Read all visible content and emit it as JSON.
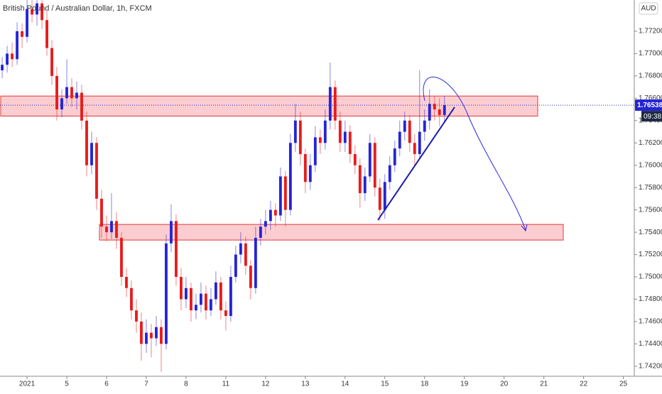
{
  "chart_data": {
    "type": "candlestick",
    "title": "British Pound / Australian Dollar, 1h, FXCM",
    "currency": "AUD",
    "countdown": "09:38",
    "up_color": "#2424d6",
    "down_color": "#e81b1b",
    "open": [
      1.7685,
      1.769,
      1.77,
      1.7695,
      1.772,
      1.7715,
      1.774,
      1.7735,
      1.7745,
      1.773,
      1.7705,
      1.768,
      1.765,
      1.766,
      1.767,
      1.766,
      1.7665,
      1.764,
      1.76,
      1.762,
      1.757,
      1.7545,
      1.754,
      1.755,
      1.7535,
      1.75,
      1.749,
      1.747,
      1.746,
      1.744,
      1.745,
      1.7445,
      1.7455,
      1.744,
      1.753,
      1.755,
      1.75,
      1.748,
      1.749,
      1.747,
      1.7475,
      1.7485,
      1.747,
      1.748,
      1.7495,
      1.747,
      1.7465,
      1.75,
      1.752,
      1.753,
      1.751,
      1.749,
      1.7535,
      1.7545,
      1.755,
      1.756,
      1.7555,
      1.759,
      1.756,
      1.762,
      1.764,
      1.761,
      1.7585,
      1.76,
      1.7625,
      1.762,
      1.764,
      1.767,
      1.764,
      1.762,
      1.763,
      1.761,
      1.76,
      1.7575,
      1.759,
      1.762,
      1.758,
      1.756,
      1.7585,
      1.76,
      1.7615,
      1.763,
      1.764,
      1.762,
      1.761,
      1.763,
      1.764,
      1.7655,
      1.765,
      1.7645
    ],
    "high": [
      1.7697,
      1.7707,
      1.771,
      1.7728,
      1.7727,
      1.7748,
      1.7748,
      1.7748,
      1.7748,
      1.7738,
      1.7712,
      1.7688,
      1.7668,
      1.7695,
      1.7678,
      1.7675,
      1.7672,
      1.7648,
      1.763,
      1.7625,
      1.7578,
      1.7555,
      1.7575,
      1.7558,
      1.754,
      1.7508,
      1.7497,
      1.748,
      1.7468,
      1.7462,
      1.7458,
      1.7465,
      1.7462,
      1.7538,
      1.7565,
      1.7556,
      1.7508,
      1.75,
      1.7495,
      1.7485,
      1.7495,
      1.7492,
      1.749,
      1.7505,
      1.75,
      1.7478,
      1.751,
      1.7528,
      1.754,
      1.7536,
      1.7515,
      1.7545,
      1.7552,
      1.756,
      1.7568,
      1.7566,
      1.7598,
      1.7595,
      1.7628,
      1.7655,
      1.7648,
      1.7615,
      1.761,
      1.7635,
      1.7632,
      1.765,
      1.7692,
      1.7676,
      1.7648,
      1.764,
      1.7636,
      1.7618,
      1.7606,
      1.7598,
      1.7628,
      1.7625,
      1.7588,
      1.7592,
      1.7608,
      1.7622,
      1.764,
      1.7648,
      1.7645,
      1.7628,
      1.7685,
      1.765,
      1.7668,
      1.7662,
      1.766,
      1.7662
    ],
    "low": [
      1.7678,
      1.7683,
      1.7688,
      1.769,
      1.7705,
      1.771,
      1.7728,
      1.7725,
      1.7722,
      1.7698,
      1.7672,
      1.764,
      1.7643,
      1.7655,
      1.7652,
      1.765,
      1.7632,
      1.759,
      1.7592,
      1.756,
      1.7535,
      1.7532,
      1.7534,
      1.7525,
      1.7492,
      1.7482,
      1.7462,
      1.745,
      1.7425,
      1.7432,
      1.7428,
      1.7438,
      1.7415,
      1.7435,
      1.7522,
      1.7492,
      1.747,
      1.7472,
      1.746,
      1.7462,
      1.7468,
      1.7462,
      1.7465,
      1.7475,
      1.7462,
      1.7452,
      1.746,
      1.7495,
      1.7512,
      1.7502,
      1.748,
      1.7485,
      1.7528,
      1.7538,
      1.7542,
      1.7545,
      1.755,
      1.7545,
      1.7555,
      1.7612,
      1.76,
      1.7575,
      1.7578,
      1.7594,
      1.761,
      1.7614,
      1.7632,
      1.7632,
      1.7612,
      1.7612,
      1.7602,
      1.7592,
      1.7562,
      1.7568,
      1.7585,
      1.7572,
      1.755,
      1.7552,
      1.7578,
      1.7594,
      1.7608,
      1.7622,
      1.7612,
      1.76,
      1.7605,
      1.7622,
      1.7632,
      1.764,
      1.7635,
      1.7638
    ],
    "close": [
      1.769,
      1.77,
      1.7695,
      1.772,
      1.7715,
      1.774,
      1.7735,
      1.7745,
      1.773,
      1.7705,
      1.768,
      1.765,
      1.766,
      1.767,
      1.766,
      1.7665,
      1.764,
      1.76,
      1.762,
      1.757,
      1.7545,
      1.754,
      1.755,
      1.7535,
      1.75,
      1.749,
      1.747,
      1.746,
      1.744,
      1.745,
      1.7445,
      1.7455,
      1.744,
      1.753,
      1.755,
      1.75,
      1.748,
      1.749,
      1.747,
      1.7475,
      1.7485,
      1.747,
      1.748,
      1.7495,
      1.747,
      1.7465,
      1.75,
      1.752,
      1.753,
      1.751,
      1.749,
      1.7535,
      1.7545,
      1.755,
      1.756,
      1.7555,
      1.759,
      1.756,
      1.762,
      1.764,
      1.761,
      1.7585,
      1.76,
      1.7625,
      1.762,
      1.764,
      1.767,
      1.764,
      1.762,
      1.763,
      1.761,
      1.76,
      1.7575,
      1.759,
      1.762,
      1.758,
      1.756,
      1.7585,
      1.76,
      1.7615,
      1.763,
      1.764,
      1.762,
      1.761,
      1.763,
      1.764,
      1.7655,
      1.765,
      1.7645,
      1.76538
    ],
    "xlim": [
      -0.44,
      127.2
    ],
    "xticks": [
      {
        "value": 5,
        "label": "2021"
      },
      {
        "value": 13,
        "label": "5"
      },
      {
        "value": 21,
        "label": "6"
      },
      {
        "value": 29,
        "label": "7"
      },
      {
        "value": 37,
        "label": "8"
      },
      {
        "value": 45,
        "label": "11"
      },
      {
        "value": 53,
        "label": "12"
      },
      {
        "value": 61,
        "label": "13"
      },
      {
        "value": 69,
        "label": "14"
      },
      {
        "value": 77,
        "label": "15"
      },
      {
        "value": 85,
        "label": "18"
      },
      {
        "value": 93,
        "label": "19"
      },
      {
        "value": 101,
        "label": "20"
      },
      {
        "value": 109,
        "label": "21"
      },
      {
        "value": 117,
        "label": "22"
      },
      {
        "value": 125,
        "label": "25"
      }
    ],
    "ylim": [
      1.7411,
      1.7748
    ],
    "yticks": [
      {
        "value": 1.742,
        "label": "1.74200"
      },
      {
        "value": 1.744,
        "label": "1.74400"
      },
      {
        "value": 1.746,
        "label": "1.74600"
      },
      {
        "value": 1.748,
        "label": "1.74800"
      },
      {
        "value": 1.75,
        "label": "1.75000"
      },
      {
        "value": 1.752,
        "label": "1.75200"
      },
      {
        "value": 1.754,
        "label": "1.75400"
      },
      {
        "value": 1.756,
        "label": "1.75600"
      },
      {
        "value": 1.758,
        "label": "1.75800"
      },
      {
        "value": 1.76,
        "label": "1.76000"
      },
      {
        "value": 1.762,
        "label": "1.76200"
      },
      {
        "value": 1.764,
        "label": "1.76400"
      },
      {
        "value": 1.766,
        "label": "1.76600"
      },
      {
        "value": 1.768,
        "label": "1.76800"
      },
      {
        "value": 1.77,
        "label": "1.77000"
      },
      {
        "value": 1.772,
        "label": "1.77200"
      }
    ],
    "zones": [
      {
        "low": 1.7644,
        "high": 1.7662
      },
      {
        "low": 1.7533,
        "high": 1.7547
      }
    ]
  }
}
